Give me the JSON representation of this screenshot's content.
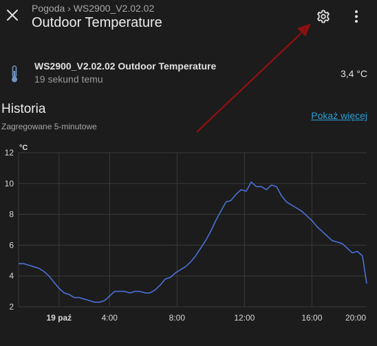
{
  "header": {
    "breadcrumb": "Pogoda › WS2900_V2.02.02",
    "title": "Outdoor Temperature"
  },
  "entity": {
    "name": "WS2900_V2.02.02 Outdoor Temperature",
    "last_changed": "19 sekund temu",
    "state": "3,4 °C",
    "icon": "thermometer-icon"
  },
  "history": {
    "title": "Historia",
    "subtitle": "Zagregowane 5-minutowe",
    "show_more": "Pokaż więcej"
  },
  "colors": {
    "line": "#4a72d8",
    "link": "#2a9fd6",
    "annotation_arrow": "#8b1010"
  },
  "chart_data": {
    "type": "line",
    "ylabel": "°C",
    "ylim": [
      2,
      12
    ],
    "yticks": [
      2,
      4,
      6,
      8,
      10,
      12
    ],
    "xlim": [
      0.6,
      21.25
    ],
    "xticks": [
      {
        "value": 3,
        "label": "19 paź",
        "bold": true
      },
      {
        "value": 6,
        "label": "4:00",
        "bold": false
      },
      {
        "value": 10,
        "label": "8:00",
        "bold": false
      },
      {
        "value": 14,
        "label": "12:00",
        "bold": false
      },
      {
        "value": 18,
        "label": "16:00",
        "bold": false
      },
      {
        "value": 22,
        "label": "20:00",
        "bold": false
      }
    ],
    "series": [
      {
        "x": [
          0.6,
          0.9,
          1.2,
          1.5,
          1.8,
          2.1,
          2.4,
          2.7,
          3.0,
          3.3,
          3.6,
          3.9,
          4.2,
          4.5,
          4.8,
          5.1,
          5.4,
          5.7,
          6.0,
          6.3,
          6.6,
          6.9,
          7.2,
          7.5,
          7.8,
          8.1,
          8.4,
          8.7,
          9.0,
          9.3,
          9.6,
          9.9,
          10.2,
          10.5,
          10.8,
          11.1,
          11.4,
          11.7,
          12.0,
          12.3,
          12.6,
          12.9,
          13.2,
          13.5,
          13.8,
          14.1,
          14.4,
          14.7,
          15.0,
          15.3,
          15.6,
          15.9,
          16.2,
          16.5,
          16.8,
          17.1,
          17.4,
          17.7,
          18.0,
          18.3,
          18.6,
          18.9,
          19.2,
          19.5,
          19.8,
          20.1,
          20.4,
          20.7,
          21.0,
          21.25
        ],
        "y": [
          4.8,
          4.8,
          4.7,
          4.6,
          4.5,
          4.3,
          4.0,
          3.6,
          3.2,
          2.9,
          2.8,
          2.6,
          2.6,
          2.5,
          2.4,
          2.3,
          2.3,
          2.4,
          2.7,
          3.0,
          3.0,
          3.0,
          2.9,
          3.0,
          3.0,
          2.9,
          2.9,
          3.1,
          3.4,
          3.8,
          3.9,
          4.2,
          4.4,
          4.6,
          4.9,
          5.3,
          5.8,
          6.3,
          6.9,
          7.6,
          8.2,
          8.8,
          8.9,
          9.3,
          9.6,
          9.5,
          10.1,
          9.8,
          9.8,
          9.6,
          9.9,
          9.8,
          9.2,
          8.8,
          8.6,
          8.4,
          8.2,
          7.9,
          7.6,
          7.2,
          6.9,
          6.6,
          6.3,
          6.2,
          6.1,
          5.8,
          5.5,
          5.6,
          5.3,
          3.5
        ]
      }
    ]
  }
}
